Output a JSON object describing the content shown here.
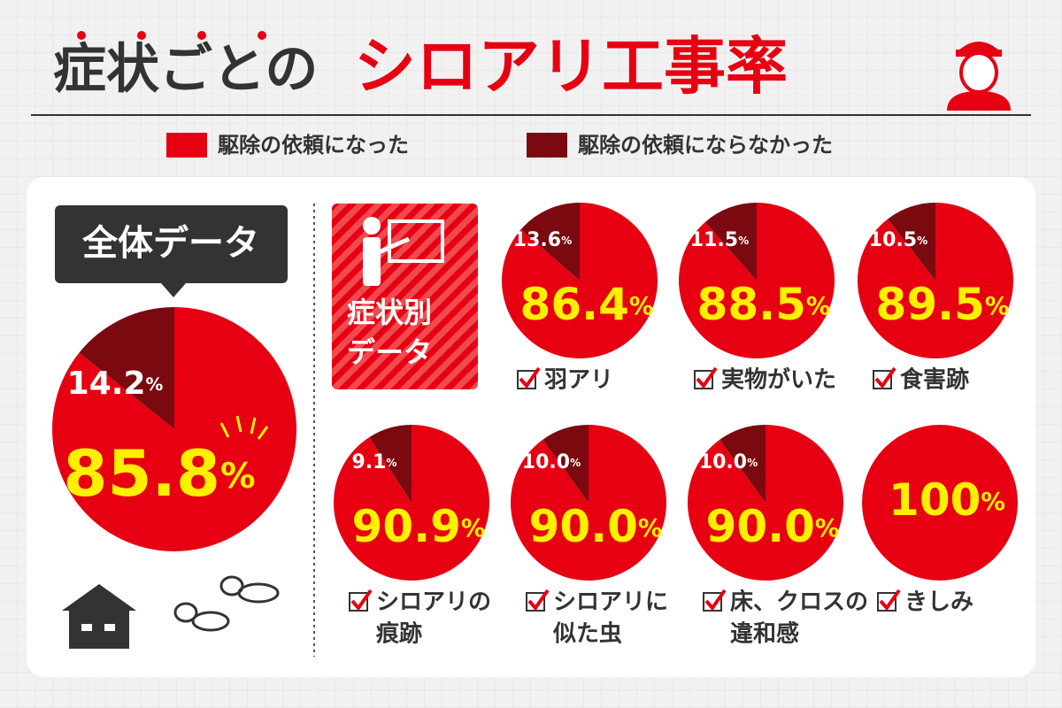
{
  "title_parts": [
    "症状ごとの",
    "シロアリ工事率"
  ],
  "legend": [
    {
      "name": "駆除の依頼になった",
      "color": "#e60012"
    },
    {
      "name": "駆除の依頼にならなかった",
      "color": "#7a0a10"
    }
  ],
  "overall_label": "全体データ",
  "group_label": [
    "症状別",
    "データ"
  ],
  "chart_data": [
    {
      "type": "pie",
      "title": null,
      "values": [
        85.8,
        14.2
      ],
      "value_labels": [
        "85.8%",
        "14.2%"
      ]
    },
    {
      "type": "pie",
      "title": [
        "羽アリ"
      ],
      "values": [
        86.4,
        13.6
      ],
      "value_labels": [
        "86.4%",
        "13.6%"
      ]
    },
    {
      "type": "pie",
      "title": [
        "実物がいた"
      ],
      "values": [
        88.5,
        11.5
      ],
      "value_labels": [
        "88.5%",
        "11.5%"
      ]
    },
    {
      "type": "pie",
      "title": [
        "食害跡"
      ],
      "values": [
        89.5,
        10.5
      ],
      "value_labels": [
        "89.5%",
        "10.5%"
      ]
    },
    {
      "type": "pie",
      "title": [
        "シロアリの",
        "痕跡"
      ],
      "values": [
        90.9,
        9.1
      ],
      "value_labels": [
        "90.9%",
        "9.1%"
      ]
    },
    {
      "type": "pie",
      "title": [
        "シロアリに",
        "似た虫"
      ],
      "values": [
        90.0,
        10.0
      ],
      "value_labels": [
        "90.0%",
        "10.0%"
      ]
    },
    {
      "type": "pie",
      "title": [
        "床、クロスの",
        "違和感"
      ],
      "values": [
        90.0,
        10.0
      ],
      "value_labels": [
        "90.0%",
        "10.0%"
      ]
    },
    {
      "type": "pie",
      "title": [
        "きしみ"
      ],
      "values": [
        100,
        0
      ],
      "value_labels": [
        "100%",
        null
      ]
    }
  ]
}
